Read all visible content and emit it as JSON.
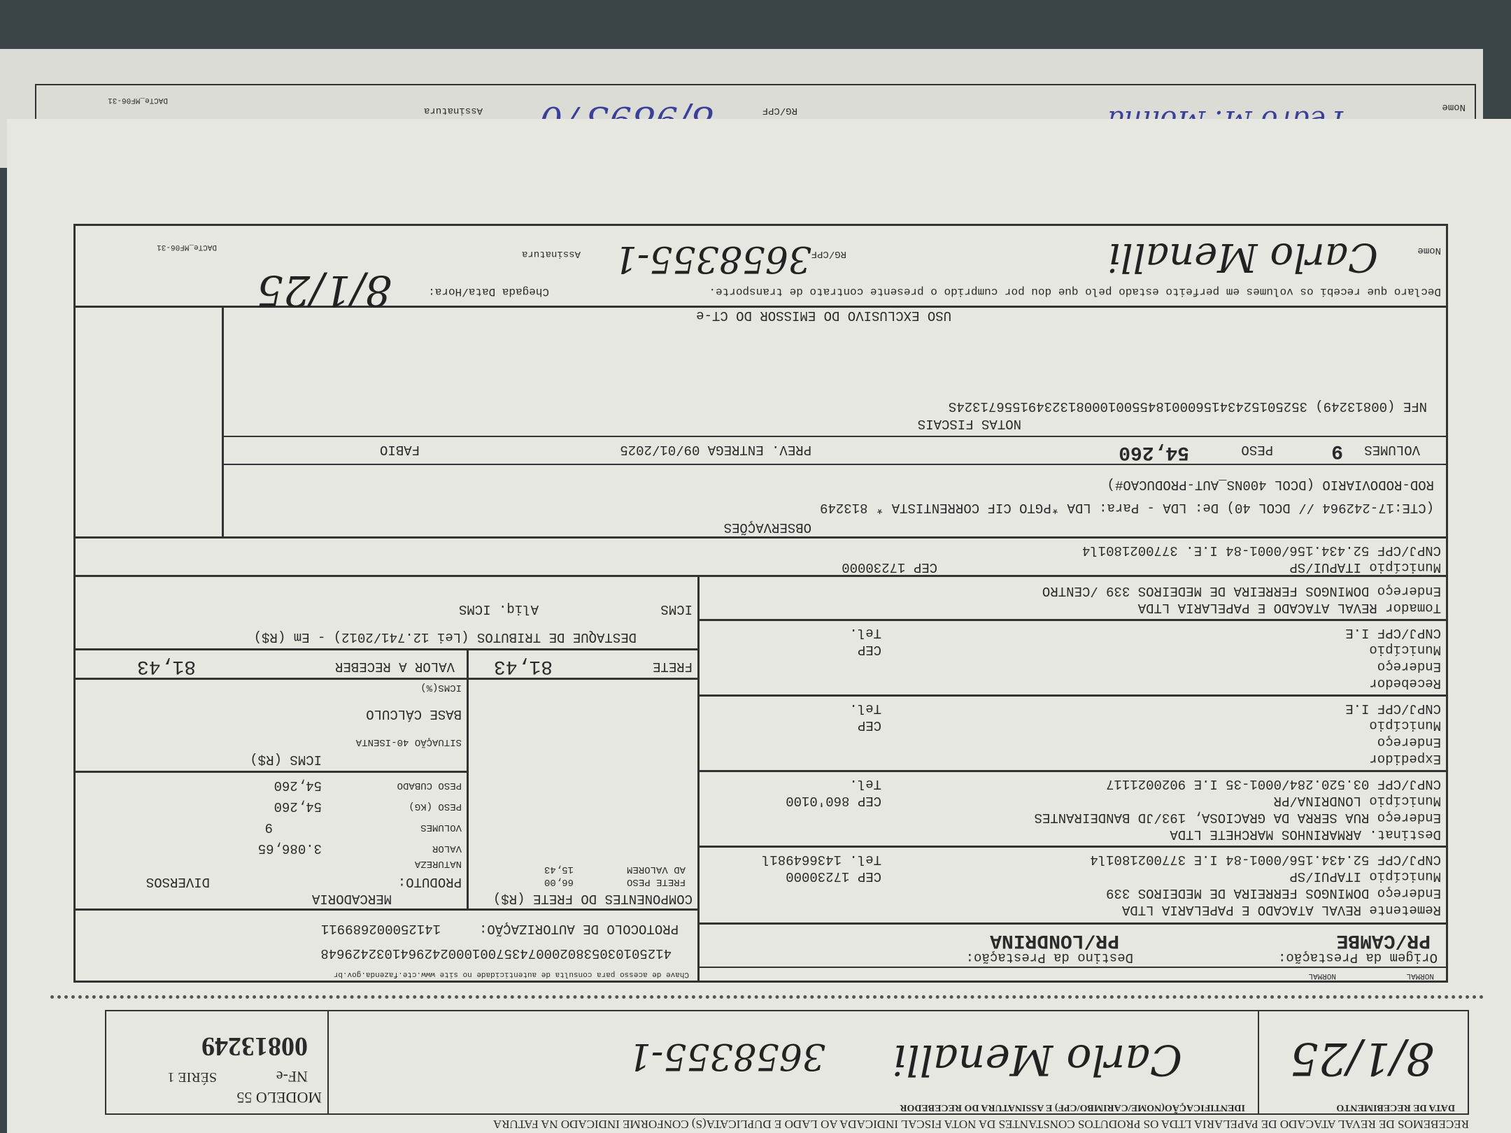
{
  "receipt_strip": {
    "header_text": "RECEBEMOS DE REVAL ATACADO DE PAPELARIA LTDA OS PRODUTOS CONSTANTES DA NOTA FISCAL INDICADA AO LADO E DUPLICATA(S) CONFORME INDICADO NA FATURA",
    "date_label": "DATA DE RECEBIMENTO",
    "date_handwritten": "8/1/25",
    "identification_label": "IDENTIFICAÇÃO(NOME/CARIMBO/CPF) E ASSINATURA DO RECEBEDOR",
    "rg_handwritten": "3658355-1",
    "modelo": "MODELO 55",
    "nfe_label": "NF-e",
    "serie": "SÉRIE 1",
    "nf_number": "00813249"
  },
  "dacte": {
    "modal_labels": [
      "NORMAL",
      "NORMAL"
    ],
    "origem_label": "Origem da Prestação:",
    "origem_value": "PR/CAMBE",
    "destino_label": "Destino da Prestação:",
    "destino_value": "PR/LONDRINA",
    "chave_label": "Chave de acesso para consulta de autenticidade no site www.cte.fazenda.gov.br",
    "chave_value": "41250103053802000743570010002429641032429648",
    "protocolo_label": "PROTOCOLO DE AUTORIZAÇÃO:",
    "protocolo_value": "141250002689911",
    "remetente": {
      "line1": "Remetente REVAL ATACADO E PAPELARIA LTDA",
      "line2": "Endereço DOMINGOS  FERREIRA DE MEDEIROS  339",
      "line3": "Município ITAPUI/SP",
      "cep": "CEP  17230000",
      "line4": "CNPJ/CPF  52.434.156/0001-84       I.E 3770021801l4",
      "tel": "Tel. 143664981l"
    },
    "destinatario": {
      "line1": "Destinat. ARMARINHOS MARCHETE LTDA",
      "line2": "Endereço  RUA SERRA DA GRACIOSA, 193/JD BANDEIRANTES",
      "line3": "Município LONDRINA/PR",
      "cep": "CEP  860'0100",
      "line4": "CNPJ/CPF  03.520.284/0001-35       I.E 9020021117",
      "tel": "Tel."
    },
    "expedidor": {
      "line1": "Expedidor",
      "line2": "Endereço",
      "line3": "Município",
      "cep": "CEP",
      "line4": "CNPJ/CPF                          I.E",
      "tel": "Tel."
    },
    "recebedor": {
      "line1": "Recebedor",
      "line2": "Endereço",
      "line3": "Município",
      "cep": "CEP",
      "line4": "CNPJ/CPF                          I.E",
      "tel": "Tel."
    },
    "tomador": {
      "line1": "Tomador    REVAL ATACADO E PAPELARIA LTDA",
      "line2": "Endereço  DOMINGOS   FERREIRA DE MEDEIROS   339        /CENTRO",
      "line3": "Município ITAPUI/SP",
      "cep": "CEP  17230000",
      "line4": "CNPJ/CPF  52.434.156/0001-84       I.E.     3770021801l4"
    },
    "componentes": {
      "title": "COMPONENTES DO FRETE (R$)",
      "items": [
        {
          "label": "FRETE PESO",
          "value": "66,00"
        },
        {
          "label": "AD VALOREM",
          "value": "15,43"
        }
      ],
      "frete_label": "FRETE",
      "frete_value": "81,43"
    },
    "produto": {
      "natureza_value": "MERCADORIA",
      "produto_label": "PRODUTO:",
      "produto_value": "DIVERSOS",
      "natureza_label": "NATUREZA",
      "valor_label": "VALOR",
      "valor_value": "3.086,65",
      "volumes_label": "VOLUMES",
      "volumes_value": "9",
      "peso_label": "PESO  (KG)",
      "peso_value": "54,260",
      "peso_cubado_label": "PESO CUBADO",
      "peso_cubado_value": "54,260"
    },
    "icms": {
      "title": "ICMS (R$)",
      "situacao": "SITUAÇÃO 40-ISENTA",
      "base": "BASE CÁLCULO",
      "icms_pct": "ICMS(%)",
      "valor_receber_label": "VALOR A RECEBER",
      "valor_receber_value": "81,43"
    },
    "tributos": {
      "title": "DESTAQUE DE TRIBUTOS (Lei 12.741/2012) - Em (R$)",
      "icms": "ICMS",
      "aliq": "Aliq. ICMS"
    },
    "observacoes": {
      "title": "OBSERVAÇÕES",
      "line1": "(CTE:17-242964 // DCOL 40)     De: LDA - Para: LDA *PGTO CIF CORRENTISTA * 813249",
      "line2": "ROD-RODOVIARIO (DCOL 400NS_AUT-PRODUCAO#)",
      "volumes_label": "VOLUMES",
      "volumes_value": "9",
      "peso_label": "PESO",
      "peso_value": "54,260",
      "prev_entrega": "PREV. ENTREGA  09/01/2025",
      "conferente": "FABIO",
      "notas_title": "NOTAS FISCAIS",
      "nfe_line": "NFE (00813249) 35250152434156000184550010008132349155671324S"
    },
    "uso_exclusivo": "USO EXCLUSIVO DO EMISSOR DO CT-e",
    "declaro": "Declaro que recebi os volumes em perfeito estado pelo que dou por cumprido o presente contrato de transporte.",
    "chegada": "Chegada Data/Hora:",
    "chegada_handwritten": "8/1/25",
    "nome_label": "Nome",
    "rg_label": "RG/CPF",
    "rg_handwritten": "3658355-1",
    "assinatura_label": "Assinatura",
    "footer_code": "DACTe_MF06-31"
  },
  "back_sheet": {
    "nome_label": "Nome",
    "rg_label": "RG/CPF",
    "rg_handwritten": "8/989370",
    "assinatura_label": "Assinatura",
    "footer_code": "DACTe_MF06-31"
  }
}
